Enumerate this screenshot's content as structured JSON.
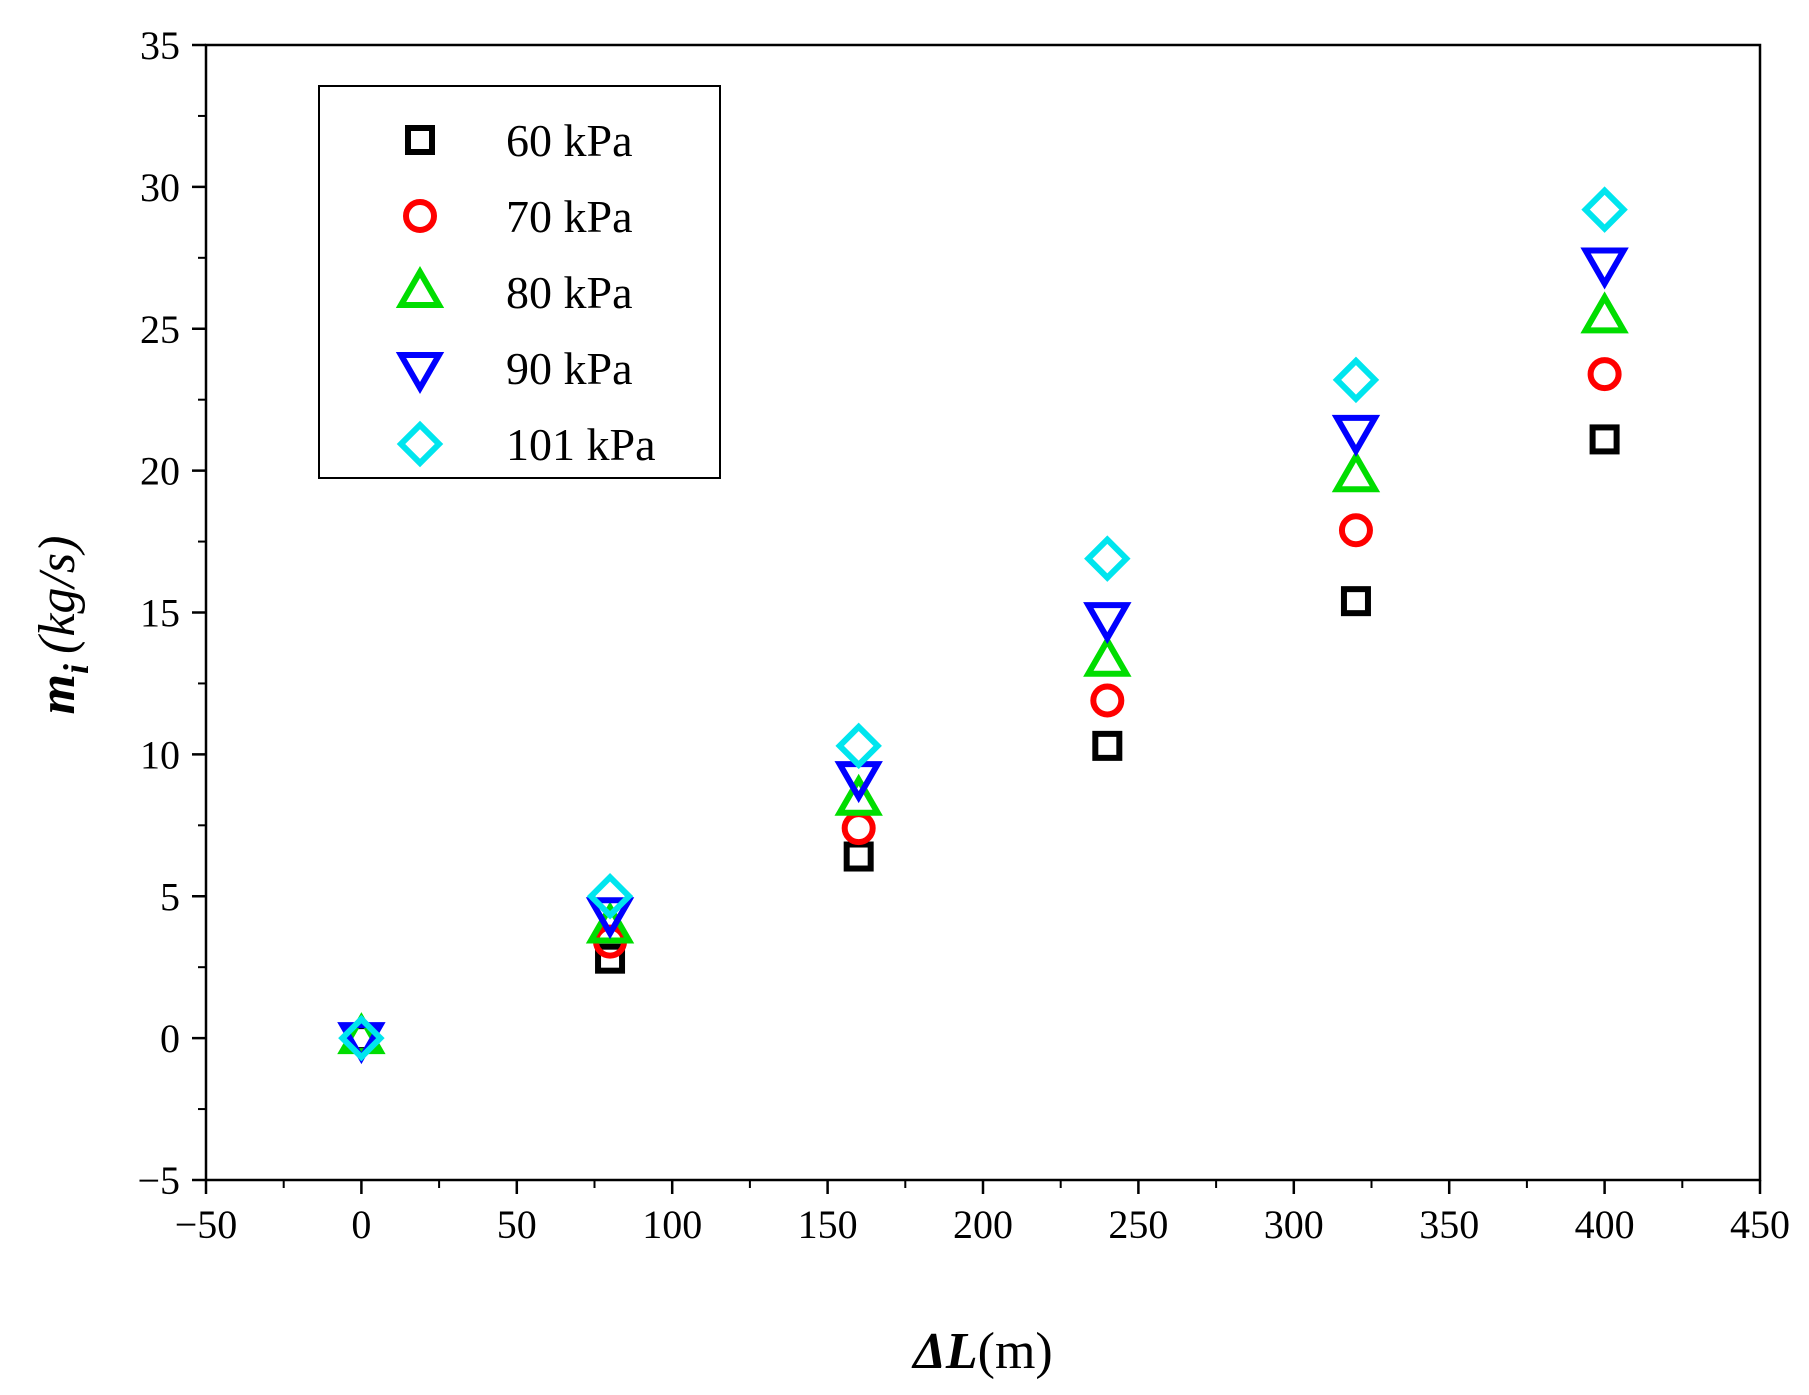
{
  "chart_data": {
    "type": "scatter",
    "title": "",
    "xlabel": "ΔL(m)",
    "ylabel": "m_i (kg/s)",
    "xlabel_parts": {
      "symbol": "ΔL",
      "unit": "(m)"
    },
    "ylabel_parts": {
      "symbol": "m",
      "subscript": "i",
      "unit": "(kg/s)"
    },
    "xlim": [
      -50,
      450
    ],
    "ylim": [
      -5,
      35
    ],
    "x_ticks": [
      "−50",
      "0",
      "50",
      "100",
      "150",
      "200",
      "250",
      "300",
      "350",
      "400",
      "450"
    ],
    "y_ticks": [
      "−5",
      "0",
      "5",
      "10",
      "15",
      "20",
      "25",
      "30",
      "35"
    ],
    "x_tick_values": [
      -50,
      0,
      50,
      100,
      150,
      200,
      250,
      300,
      350,
      400,
      450
    ],
    "y_tick_values": [
      -5,
      0,
      5,
      10,
      15,
      20,
      25,
      30,
      35
    ],
    "grid": false,
    "legend_position": "top-left",
    "series": [
      {
        "name": "60 kPa",
        "marker": "square",
        "color": "#000000",
        "x": [
          0,
          80,
          160,
          240,
          320,
          400
        ],
        "y": [
          0,
          2.8,
          6.4,
          10.3,
          15.4,
          21.1
        ]
      },
      {
        "name": "70 kPa",
        "marker": "circle",
        "color": "#ff0000",
        "x": [
          0,
          80,
          160,
          240,
          320,
          400
        ],
        "y": [
          0,
          3.4,
          7.4,
          11.9,
          17.9,
          23.4
        ]
      },
      {
        "name": "80 kPa",
        "marker": "triangle-up",
        "color": "#00dd00",
        "x": [
          0,
          80,
          160,
          240,
          320,
          400
        ],
        "y": [
          0,
          3.9,
          8.4,
          13.3,
          19.8,
          25.4
        ]
      },
      {
        "name": "90 kPa",
        "marker": "triangle-down",
        "color": "#0000ff",
        "x": [
          0,
          80,
          160,
          240,
          320,
          400
        ],
        "y": [
          0,
          4.4,
          9.2,
          14.8,
          21.4,
          27.3
        ]
      },
      {
        "name": "101 kPa",
        "marker": "diamond",
        "color": "#00e5ee",
        "x": [
          0,
          80,
          160,
          240,
          320,
          400
        ],
        "y": [
          0,
          5.0,
          10.3,
          16.9,
          23.2,
          29.2
        ]
      }
    ]
  }
}
